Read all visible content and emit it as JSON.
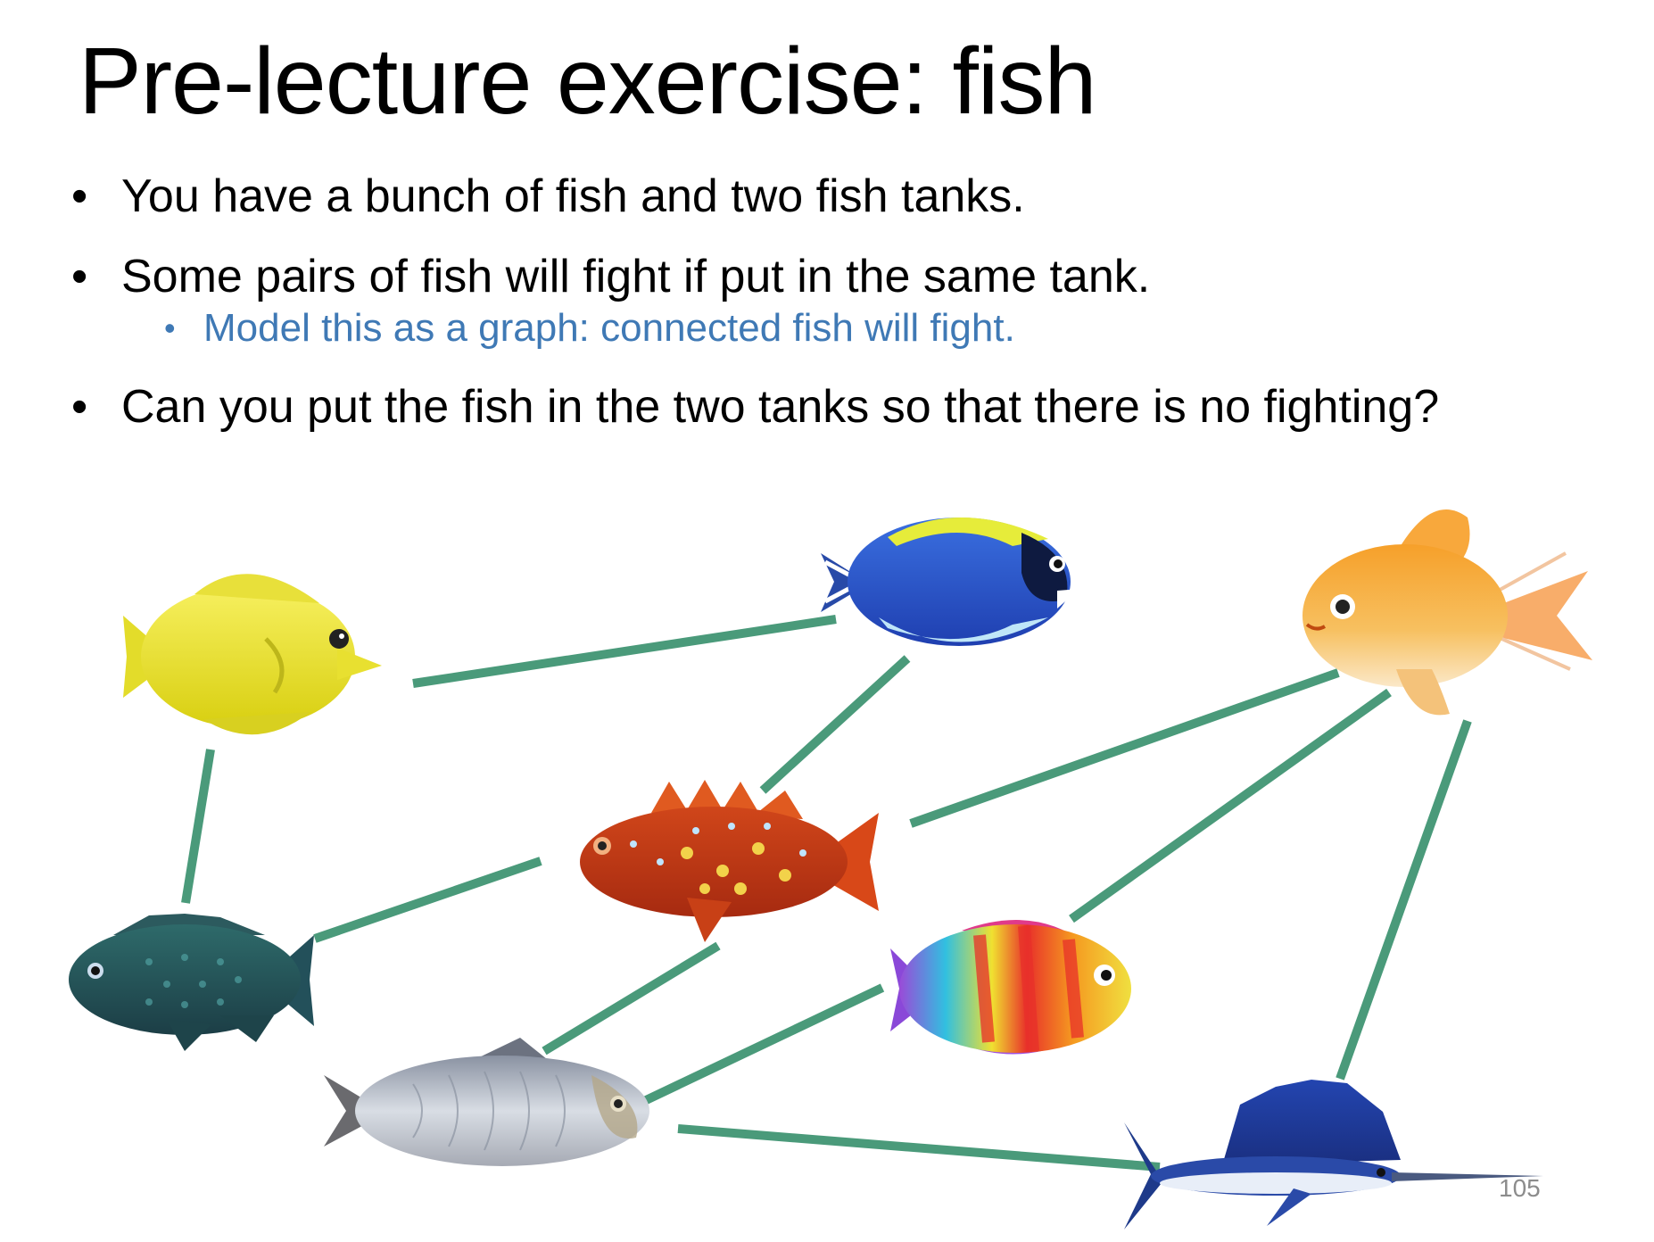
{
  "slide": {
    "title": "Pre-lecture exercise: fish",
    "bullets": [
      "You have a bunch of fish and two fish tanks.",
      "Some pairs of fish will fight if put in the same tank.",
      "Can you put the fish in the two tanks so that there is no fighting?"
    ],
    "sub_bullet": "Model this as a graph: connected fish will fight.",
    "page_number": "105"
  },
  "colors": {
    "edge": "#4a9a7a",
    "sub_bullet_text": "#3f79b5",
    "page_number": "#8c8c8c"
  },
  "graph": {
    "nodes": [
      {
        "id": "yellow-tang",
        "icon": "yellow-tang-fish-icon"
      },
      {
        "id": "powder-blue-tang",
        "icon": "powder-blue-tang-fish-icon"
      },
      {
        "id": "goldfish",
        "icon": "goldfish-icon"
      },
      {
        "id": "red-rockfish",
        "icon": "red-rockfish-icon"
      },
      {
        "id": "tilapia",
        "icon": "tilapia-fish-icon"
      },
      {
        "id": "rainbow-fish",
        "icon": "rainbow-fish-icon"
      },
      {
        "id": "silver-carp",
        "icon": "silver-carp-icon"
      },
      {
        "id": "sailfish",
        "icon": "sailfish-icon"
      }
    ],
    "edges": [
      [
        "yellow-tang",
        "powder-blue-tang"
      ],
      [
        "yellow-tang",
        "tilapia"
      ],
      [
        "powder-blue-tang",
        "red-rockfish"
      ],
      [
        "red-rockfish",
        "tilapia"
      ],
      [
        "red-rockfish",
        "goldfish"
      ],
      [
        "red-rockfish",
        "silver-carp"
      ],
      [
        "goldfish",
        "rainbow-fish"
      ],
      [
        "goldfish",
        "sailfish"
      ],
      [
        "rainbow-fish",
        "silver-carp"
      ],
      [
        "silver-carp",
        "sailfish"
      ]
    ]
  }
}
